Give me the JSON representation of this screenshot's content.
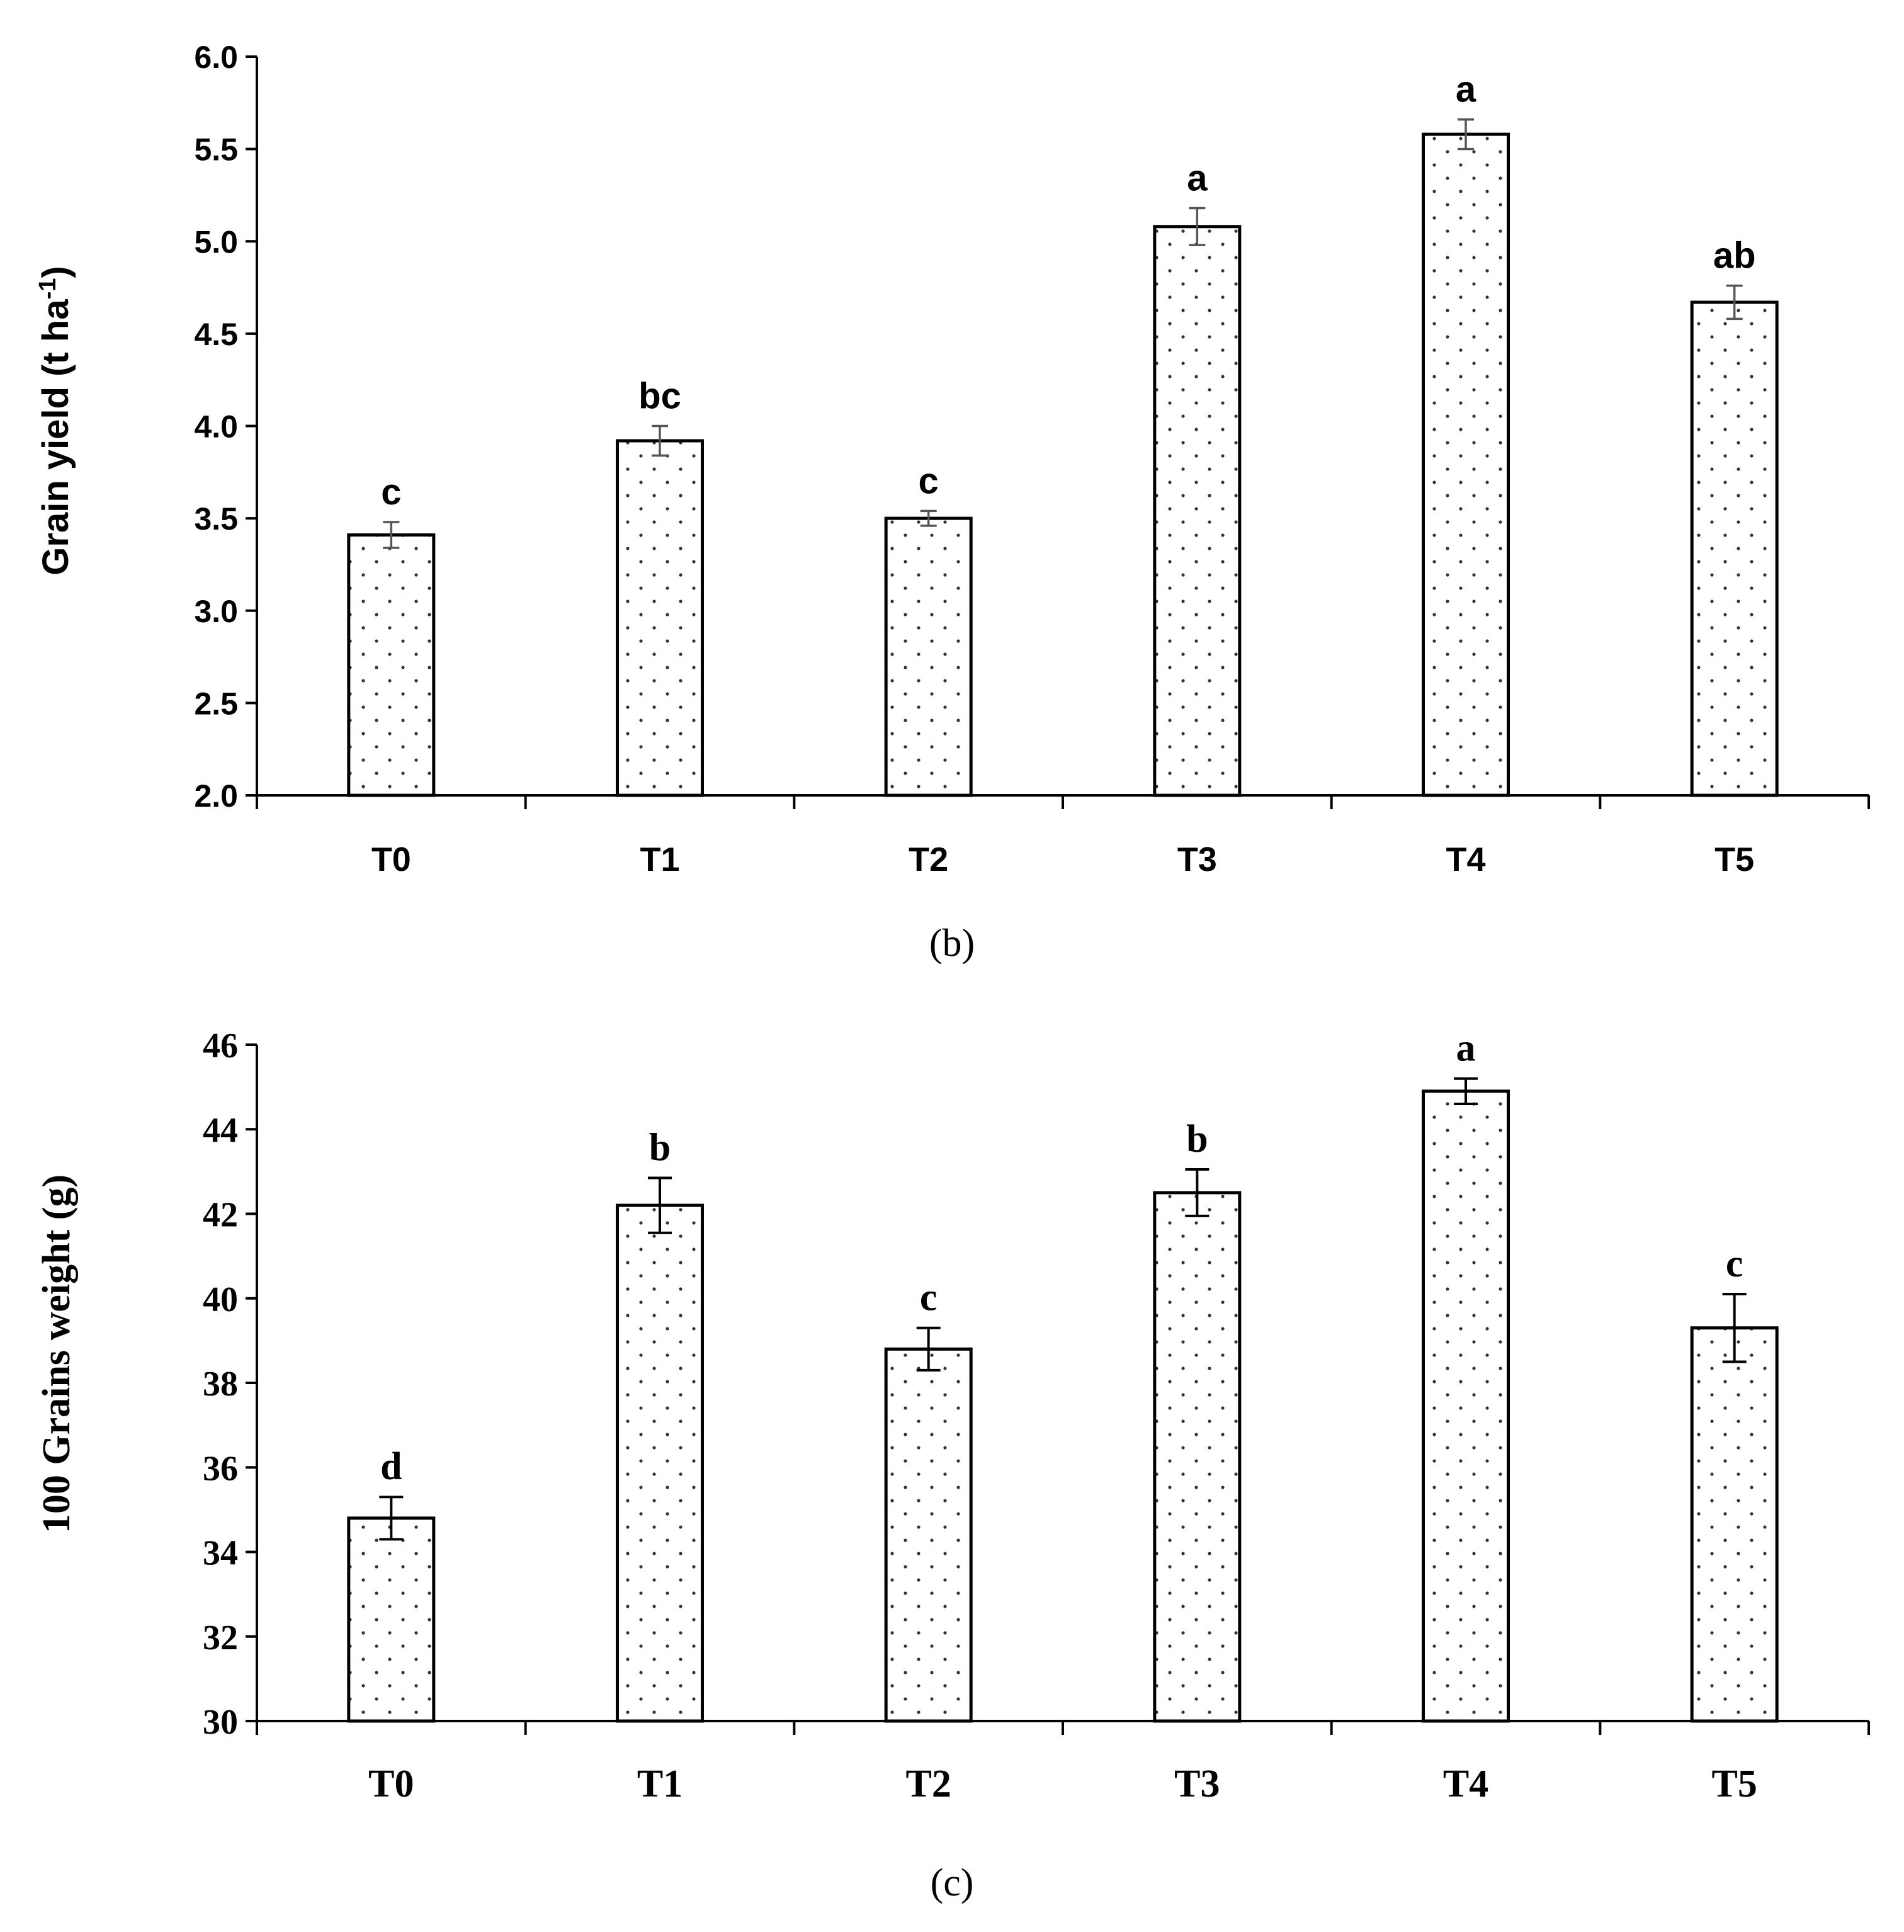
{
  "figure": {
    "panel_b_label": "(b)",
    "panel_c_label": "(c)"
  },
  "chart_data": [
    {
      "type": "bar",
      "panel": "(b)",
      "title": "",
      "xlabel": "",
      "ylabel": "Grain yield (t ha",
      "ylabel_superscript": "-1",
      "ylabel_suffix": ")",
      "ylim": [
        2.0,
        6.0
      ],
      "ytick_labels": [
        "2.0",
        "2.5",
        "3.0",
        "3.5",
        "4.0",
        "4.5",
        "5.0",
        "5.5",
        "6.0"
      ],
      "categories": [
        "T0",
        "T1",
        "T2",
        "T3",
        "T4",
        "T5"
      ],
      "values": [
        3.41,
        3.92,
        3.5,
        5.08,
        5.58,
        4.67
      ],
      "errors": [
        0.07,
        0.08,
        0.04,
        0.1,
        0.08,
        0.09
      ],
      "letters": [
        "c",
        "bc",
        "c",
        "a",
        "a",
        "ab"
      ],
      "bar_fill": "#ffffff",
      "bar_dot_color": "#333333",
      "error_color": "#555555"
    },
    {
      "type": "bar",
      "panel": "(c)",
      "title": "",
      "xlabel": "",
      "ylabel": "100 Grains weight (g)",
      "ylim": [
        30,
        46
      ],
      "ytick_labels": [
        "30",
        "32",
        "34",
        "36",
        "38",
        "40",
        "42",
        "44",
        "46"
      ],
      "categories": [
        "T0",
        "T1",
        "T2",
        "T3",
        "T4",
        "T5"
      ],
      "values": [
        34.8,
        42.2,
        38.8,
        42.5,
        44.9,
        39.3
      ],
      "errors": [
        0.5,
        0.65,
        0.5,
        0.55,
        0.3,
        0.8
      ],
      "letters": [
        "d",
        "b",
        "c",
        "b",
        "a",
        "c"
      ],
      "bar_fill": "#ffffff",
      "bar_dot_color": "#333333",
      "error_color": "#000000"
    }
  ]
}
